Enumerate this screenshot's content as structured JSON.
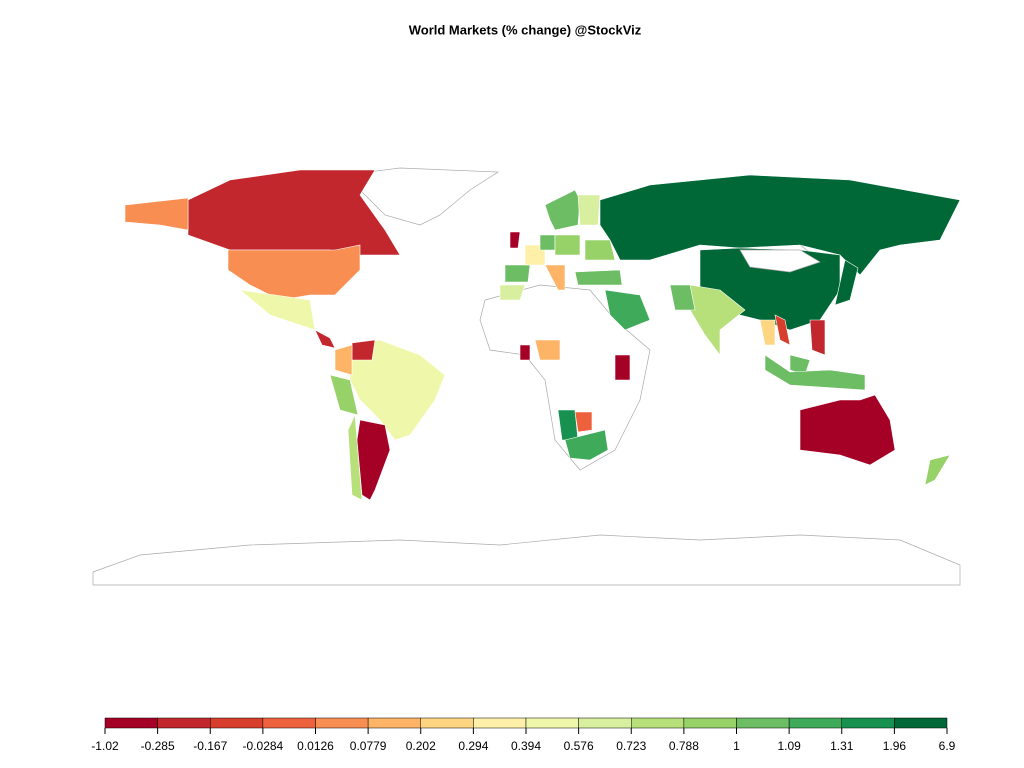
{
  "chart_data": {
    "type": "choropleth",
    "title": "World Markets (% change) @StockViz",
    "legend": {
      "breaks": [
        -1.02,
        -0.285,
        -0.167,
        -0.0284,
        0.0126,
        0.0779,
        0.202,
        0.294,
        0.394,
        0.576,
        0.723,
        0.788,
        1,
        1.09,
        1.31,
        1.96,
        6.9
      ],
      "colors": [
        "#a50026",
        "#c1272d",
        "#d73f2c",
        "#ee613d",
        "#f98e52",
        "#fdb466",
        "#fed580",
        "#fef0a8",
        "#eff8aa",
        "#d8efa0",
        "#b8e07a",
        "#96d268",
        "#6cbd63",
        "#3faa59",
        "#17914f",
        "#006837"
      ]
    }
  }
}
